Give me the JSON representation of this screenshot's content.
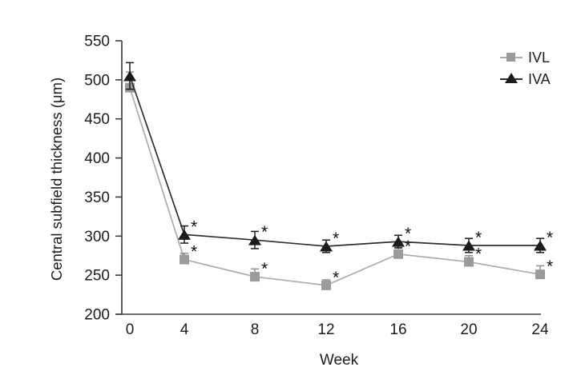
{
  "chart_data": {
    "type": "line",
    "title": "",
    "x": [
      0,
      4,
      8,
      12,
      16,
      20,
      24
    ],
    "xlabel": "Week",
    "ylabel": "Central subfield thickness (μm)",
    "ylim": [
      200,
      550
    ],
    "yticks": [
      200,
      250,
      300,
      350,
      400,
      450,
      500,
      550
    ],
    "grid": false,
    "legend_position": "top-right",
    "significance_symbol": "*",
    "axis_color": "#3b3b3b",
    "text_color": "#1c1c1c",
    "series": [
      {
        "name": "IVL",
        "marker": "square",
        "color": "#9b9b9b",
        "line_color": "#ababab",
        "error_style": "upper",
        "values": [
          490,
          270,
          248,
          237,
          277,
          267,
          251
        ],
        "errors": [
          20,
          8,
          10,
          7,
          8,
          8,
          11
        ],
        "significant": [
          false,
          true,
          true,
          true,
          true,
          true,
          true
        ]
      },
      {
        "name": "IVA",
        "marker": "triangle",
        "color": "#1c1c1c",
        "line_color": "#2e2e2e",
        "error_style": "symmetric",
        "values": [
          505,
          302,
          295,
          287,
          293,
          288,
          288
        ],
        "errors": [
          17,
          11,
          11,
          8,
          8,
          9,
          9
        ],
        "significant": [
          false,
          true,
          true,
          true,
          true,
          true,
          true
        ]
      }
    ]
  }
}
